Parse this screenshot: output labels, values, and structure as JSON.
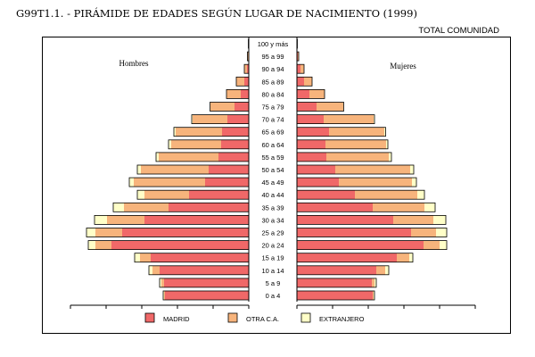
{
  "header": {
    "title": "G99T1.1. - PIRÁMIDE DE EDADES SEGÚN LUGAR DE NACIMIENTO (1999)",
    "subtitle": "TOTAL COMUNIDAD"
  },
  "chart_data": {
    "type": "bar",
    "orientation": "horizontal",
    "stacked": true,
    "layout": "population-pyramid",
    "side_labels": {
      "left": "Hombres",
      "right": "Mujeres"
    },
    "categories": [
      "0 a 4",
      "5 a 9",
      "10 a 14",
      "15 a 19",
      "20 a 24",
      "25 a 29",
      "30 a 34",
      "35 a 39",
      "40 a 44",
      "45 a 49",
      "50 a 54",
      "55 a 59",
      "60 a 64",
      "65 a 69",
      "70 a 74",
      "75 a 79",
      "80 a 84",
      "85 a 89",
      "90 a 94",
      "95 a 99",
      "100 y más"
    ],
    "series": [
      {
        "name": "MADRID",
        "color": "#f06868",
        "men": [
          94,
          95,
          100,
          110,
          154,
          142,
          117,
          90,
          67,
          49,
          45,
          34,
          31,
          30,
          24,
          16,
          9,
          5,
          2,
          0.5,
          0
        ],
        "women": [
          85,
          84,
          89,
          112,
          142,
          128,
          108,
          85,
          65,
          47,
          43,
          33,
          32,
          36,
          30,
          22,
          14,
          8,
          4,
          1,
          0
        ]
      },
      {
        "name": "OTRA C.A.",
        "color": "#f7b47c",
        "men": [
          1,
          3,
          8,
          12,
          18,
          30,
          42,
          50,
          50,
          80,
          76,
          67,
          56,
          52,
          39,
          27,
          16,
          9,
          3,
          1,
          0.5
        ],
        "women": [
          1,
          3,
          10,
          14,
          18,
          28,
          45,
          58,
          70,
          82,
          84,
          70,
          68,
          62,
          56,
          30,
          17,
          9,
          4,
          1,
          0.5
        ]
      },
      {
        "name": "EXTRANJERO",
        "color": "#ffffc8",
        "men": [
          1,
          2,
          4,
          6,
          8,
          10,
          14,
          12,
          8,
          5,
          4,
          3,
          3,
          2,
          1,
          0.5,
          0,
          0,
          0,
          0,
          0
        ],
        "women": [
          1,
          2,
          4,
          4,
          8,
          12,
          14,
          12,
          8,
          5,
          4,
          3,
          2,
          1.5,
          1,
          0.5,
          0,
          0,
          0,
          0,
          0
        ]
      }
    ],
    "xlim": [
      0,
      200
    ],
    "grid": false,
    "legend_position": "bottom"
  }
}
